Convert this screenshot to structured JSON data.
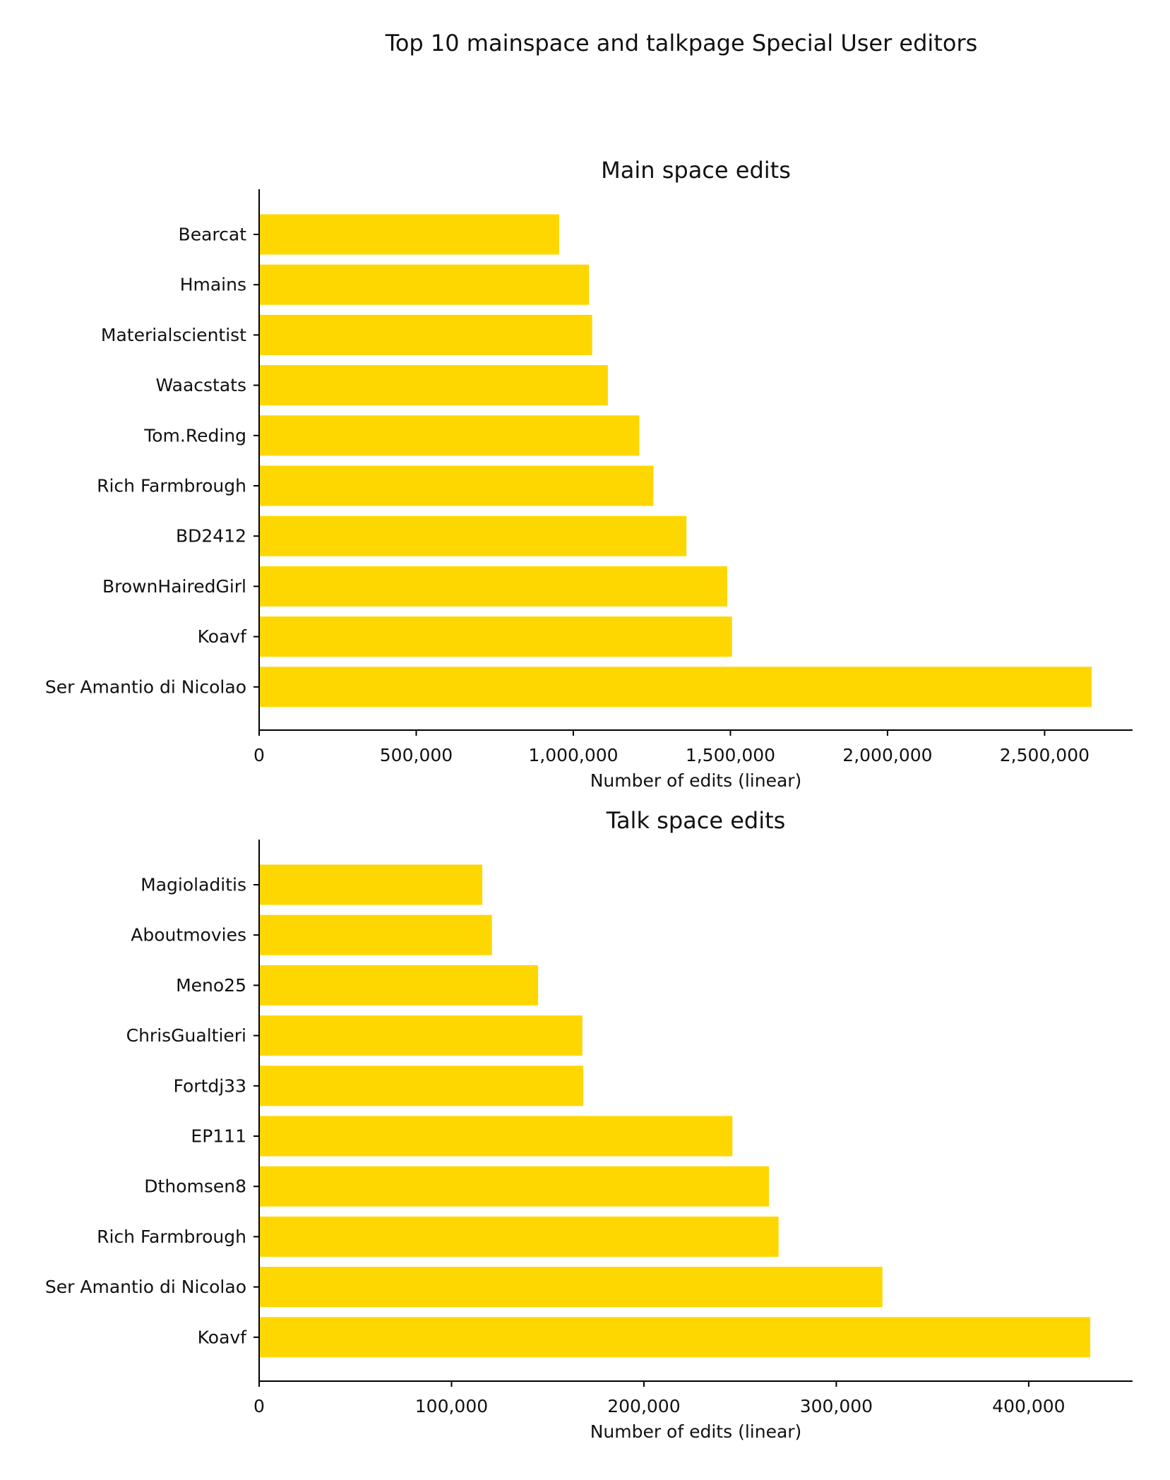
{
  "figure": {
    "title": "Top 10 mainspace and talkpage Special User editors"
  },
  "chart_data": [
    {
      "type": "bar",
      "orientation": "horizontal",
      "title": "Main space edits",
      "xlabel": "Number of edits (linear)",
      "ylabel": "",
      "bar_color": "#FFD700",
      "xlim": [
        0,
        2780000
      ],
      "xticks": [
        0,
        500000,
        1000000,
        1500000,
        2000000,
        2500000
      ],
      "xtick_labels": [
        "0",
        "500,000",
        "1,000,000",
        "1,500,000",
        "2,000,000",
        "2,500,000"
      ],
      "categories": [
        "Bearcat",
        "Hmains",
        "Materialscientist",
        "Waacstats",
        "Tom.Reding",
        "Rich Farmbrough",
        "BD2412",
        "BrownHairedGirl",
        "Koavf",
        "Ser Amantio di Nicolao"
      ],
      "values": [
        955000,
        1050000,
        1060000,
        1110000,
        1210000,
        1255000,
        1360000,
        1490000,
        1505000,
        2650000
      ]
    },
    {
      "type": "bar",
      "orientation": "horizontal",
      "title": "Talk space edits",
      "xlabel": "Number of edits (linear)",
      "ylabel": "",
      "bar_color": "#FFD700",
      "xlim": [
        0,
        454000
      ],
      "xticks": [
        0,
        100000,
        200000,
        300000,
        400000
      ],
      "xtick_labels": [
        "0",
        "100,000",
        "200,000",
        "300,000",
        "400,000"
      ],
      "categories": [
        "Magioladitis",
        "Aboutmovies",
        "Meno25",
        "ChrisGualtieri",
        "Fortdj33",
        "EP111",
        "Dthomsen8",
        "Rich Farmbrough",
        "Ser Amantio di Nicolao",
        "Koavf"
      ],
      "values": [
        116000,
        121000,
        145000,
        168000,
        168500,
        246000,
        265000,
        270000,
        324000,
        432000
      ]
    }
  ]
}
